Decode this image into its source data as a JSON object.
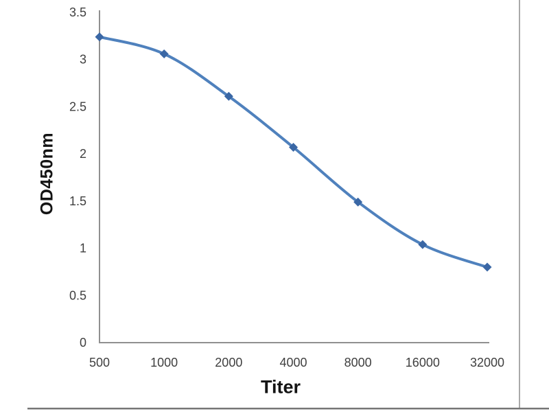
{
  "chart_data": {
    "type": "line",
    "title": "",
    "xlabel": "Titer",
    "ylabel": "OD450nm",
    "x_categories": [
      "500",
      "1000",
      "2000",
      "4000",
      "8000",
      "16000",
      "32000"
    ],
    "series": [
      {
        "name": "OD450nm",
        "values": [
          3.24,
          3.06,
          2.61,
          2.07,
          1.49,
          1.04,
          0.8
        ]
      }
    ],
    "y_ticks": [
      "0",
      "0.5",
      "1",
      "1.5",
      "2",
      "2.5",
      "3",
      "3.5"
    ],
    "ylim": [
      0,
      3.5
    ],
    "x_axis_scale": "categorical (titer doubling series)",
    "grid": false,
    "legend": "none",
    "smooth": true,
    "marker_shape": "diamond",
    "line_color": "#4f81bd",
    "marker_color": "#3a67a5",
    "axis_color": "#909090",
    "tick_label_color": "#3f3f3f",
    "frame_right_color": "#a9a9a9",
    "frame_bottom_color": "#757575"
  }
}
